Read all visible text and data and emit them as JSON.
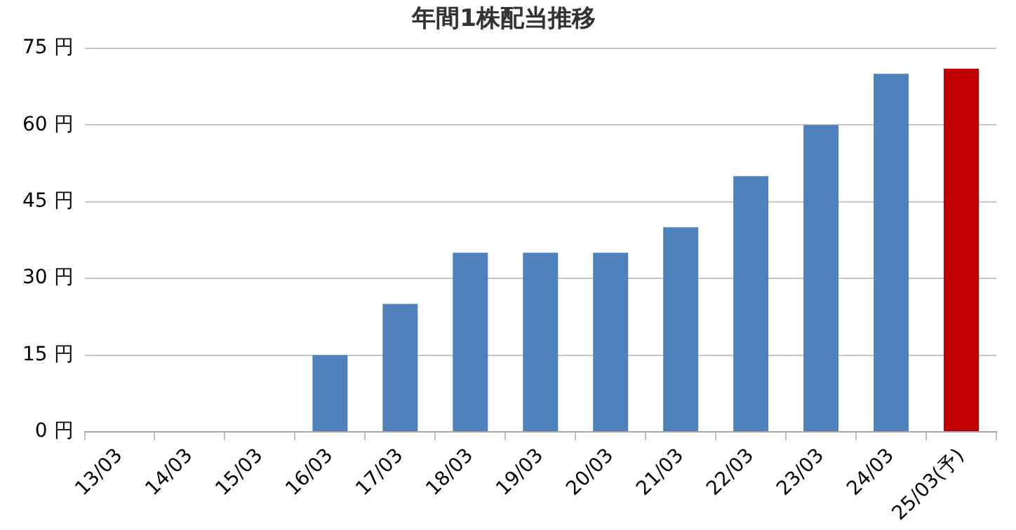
{
  "chart_data": {
    "type": "bar",
    "title": "年間1株配当推移",
    "categories": [
      "13/03",
      "14/03",
      "15/03",
      "16/03",
      "17/03",
      "18/03",
      "19/03",
      "20/03",
      "21/03",
      "22/03",
      "23/03",
      "24/03",
      "25/03(予)"
    ],
    "values": [
      0,
      0,
      0,
      15,
      25,
      35,
      35,
      35,
      40,
      50,
      60,
      70,
      71
    ],
    "colors": [
      "#4f81bd",
      "#4f81bd",
      "#4f81bd",
      "#4f81bd",
      "#4f81bd",
      "#4f81bd",
      "#4f81bd",
      "#4f81bd",
      "#4f81bd",
      "#4f81bd",
      "#4f81bd",
      "#4f81bd",
      "#c00000"
    ],
    "ylim": [
      0,
      75
    ],
    "yticks": [
      {
        "value": 0,
        "label": "0 円"
      },
      {
        "value": 15,
        "label": "15 円"
      },
      {
        "value": 30,
        "label": "30 円"
      },
      {
        "value": 45,
        "label": "45 円"
      },
      {
        "value": 60,
        "label": "60 円"
      },
      {
        "value": 75,
        "label": "75 円"
      }
    ],
    "grid": "y"
  }
}
